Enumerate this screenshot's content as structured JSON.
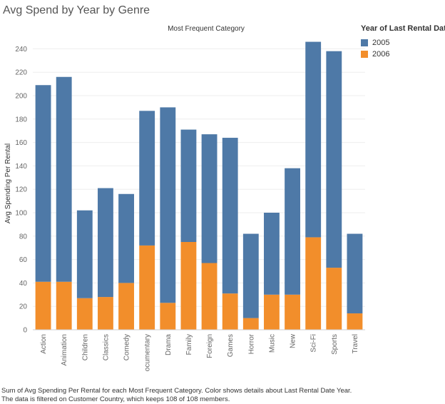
{
  "title": "Avg Spend by Year by Genre",
  "caption": "Sum of Avg Spending Per Rental for each Most Frequent Category.  Color shows details about Last Rental Date Year. The data is filtered on Customer Country, which keeps 108 of 108 members.",
  "legend": {
    "title": "Year of Last Rental Date",
    "items": [
      {
        "label": "2005",
        "color": "#4e79a7"
      },
      {
        "label": "2006",
        "color": "#f28e2b"
      }
    ]
  },
  "chart_data": {
    "type": "bar",
    "stacked": true,
    "title": "Most Frequent Category",
    "xlabel": "",
    "ylabel": "Avg Spending Per Rental",
    "ylim": [
      0,
      250
    ],
    "yticks": [
      0,
      20,
      40,
      60,
      80,
      100,
      120,
      140,
      160,
      180,
      200,
      220,
      240
    ],
    "grid": true,
    "legend_position": "top-right",
    "categories": [
      "Action",
      "Animation",
      "Children",
      "Classics",
      "Comedy",
      "Documentary",
      "Drama",
      "Family",
      "Foreign",
      "Games",
      "Horror",
      "Music",
      "New",
      "Sci-Fi",
      "Sports",
      "Travel"
    ],
    "series": [
      {
        "name": "2006",
        "color": "#f28e2b",
        "values": [
          41,
          41,
          27,
          28,
          40,
          72,
          23,
          75,
          57,
          31,
          10,
          30,
          30,
          79,
          53,
          14
        ]
      },
      {
        "name": "2005",
        "color": "#4e79a7",
        "values": [
          168,
          175,
          75,
          93,
          76,
          115,
          167,
          96,
          110,
          133,
          72,
          70,
          108,
          167,
          185,
          68
        ]
      }
    ],
    "totals": [
      209,
      216,
      102,
      121,
      116,
      187,
      190,
      171,
      167,
      164,
      82,
      100,
      138,
      246,
      238,
      82
    ]
  }
}
